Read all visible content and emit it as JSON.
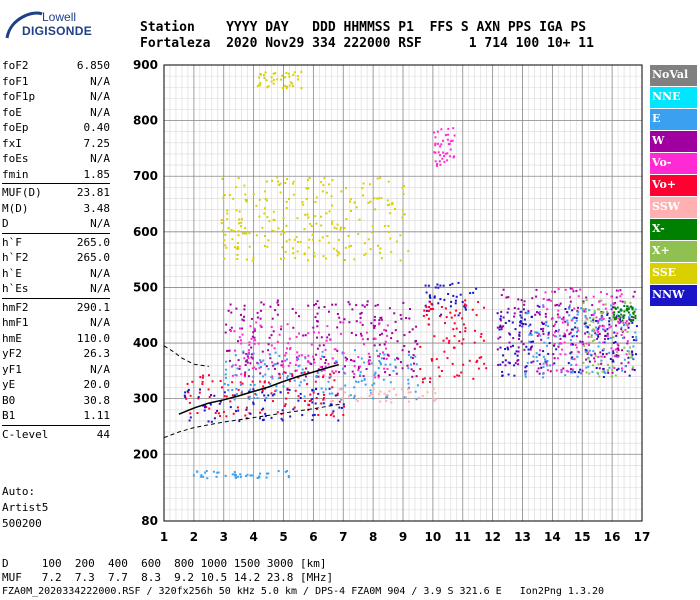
{
  "logo": {
    "line1": "Lowell",
    "line2": "DIGISONDE"
  },
  "header": {
    "row1": "Station    YYYY DAY   DDD HHMMSS P1  FFS S AXN PPS IGA PS",
    "row2": "Fortaleza  2020 Nov29 334 222000 RSF      1 714 100 10+ 11"
  },
  "params": [
    {
      "label": "foF2",
      "value": "6.850"
    },
    {
      "label": "foF1",
      "value": "N/A"
    },
    {
      "label": "foF1p",
      "value": "N/A"
    },
    {
      "label": "foE",
      "value": "N/A"
    },
    {
      "label": "foEp",
      "value": "0.40"
    },
    {
      "label": "fxI",
      "value": "7.25"
    },
    {
      "label": "foEs",
      "value": "N/A"
    },
    {
      "label": "fmin",
      "value": "1.85"
    },
    {
      "label": "MUF(D)",
      "value": "23.81"
    },
    {
      "label": "M(D)",
      "value": "3.48"
    },
    {
      "label": "D",
      "value": "N/A"
    },
    {
      "label": "h`F",
      "value": "265.0"
    },
    {
      "label": "h`F2",
      "value": "265.0"
    },
    {
      "label": "h`E",
      "value": "N/A"
    },
    {
      "label": "h`Es",
      "value": "N/A"
    },
    {
      "label": "hmF2",
      "value": "290.1"
    },
    {
      "label": "hmF1",
      "value": "N/A"
    },
    {
      "label": "hmE",
      "value": "110.0"
    },
    {
      "label": "yF2",
      "value": "26.3"
    },
    {
      "label": "yF1",
      "value": "N/A"
    },
    {
      "label": "yE",
      "value": "20.0"
    },
    {
      "label": "B0",
      "value": "30.8"
    },
    {
      "label": "B1",
      "value": "1.11"
    },
    {
      "label": "C-level",
      "value": "44"
    }
  ],
  "auto": {
    "label": "Auto:",
    "name": "Artist5",
    "version": "500200"
  },
  "footer": {
    "d_row": "D     100  200  400  600  800 1000 1500 3000 [km]",
    "muf_row": "MUF   7.2  7.3  7.7  8.3  9.2 10.5 14.2 23.8 [MHz]",
    "file_row": "FZA0M_2020334222000.RSF / 320fx256h 50 kHz 5.0 km / DPS-4 FZA0M 904 / 3.9 S 321.6 E   Ion2Png 1.3.20"
  },
  "legend": [
    {
      "label": "NoVal",
      "color": "#808080"
    },
    {
      "label": "NNE",
      "color": "#00e6ff"
    },
    {
      "label": "E",
      "color": "#3ca0f0"
    },
    {
      "label": "W",
      "color": "#a000a0"
    },
    {
      "label": "Vo-",
      "color": "#ff2ad4"
    },
    {
      "label": "Vo+",
      "color": "#ff0030"
    },
    {
      "label": "SSW",
      "color": "#ffb0b0"
    },
    {
      "label": "X-",
      "color": "#008000"
    },
    {
      "label": "X+",
      "color": "#90c050"
    },
    {
      "label": "SSE",
      "color": "#d8d000"
    },
    {
      "label": "NNW",
      "color": "#1a14c8"
    }
  ],
  "chart_data": {
    "type": "scatter",
    "xlim": [
      1,
      17
    ],
    "ylim": [
      80,
      900
    ],
    "xticks": [
      1,
      2,
      3,
      4,
      5,
      6,
      7,
      8,
      9,
      10,
      11,
      12,
      13,
      14,
      15,
      16,
      17
    ],
    "yticks": [
      80,
      200,
      300,
      400,
      500,
      600,
      700,
      800,
      900
    ],
    "xminor_step": 0.2,
    "grid": true,
    "profile_curve": [
      [
        1.5,
        272
      ],
      [
        2.0,
        283
      ],
      [
        2.5,
        292
      ],
      [
        3.0,
        298
      ],
      [
        3.5,
        305
      ],
      [
        4.0,
        313
      ],
      [
        4.5,
        321
      ],
      [
        5.0,
        331
      ],
      [
        5.5,
        340
      ],
      [
        6.0,
        348
      ],
      [
        6.5,
        356
      ],
      [
        6.85,
        361
      ]
    ],
    "dashed_upper": [
      [
        1.0,
        395
      ],
      [
        1.3,
        385
      ],
      [
        1.6,
        373
      ],
      [
        2.0,
        362
      ],
      [
        2.5,
        358
      ]
    ],
    "dashed_lower": [
      [
        1.0,
        230
      ],
      [
        1.5,
        240
      ],
      [
        2.0,
        248
      ],
      [
        3.0,
        258
      ],
      [
        4.0,
        266
      ],
      [
        5.0,
        274
      ],
      [
        6.0,
        282
      ],
      [
        6.9,
        290
      ]
    ],
    "clusters": [
      {
        "color": "#3ca0f0",
        "x": [
          1.8,
          5.3
        ],
        "y": [
          158,
          172
        ]
      },
      {
        "color": "#d8d000",
        "x": [
          2.9,
          9.2
        ],
        "y": [
          550,
          700
        ]
      },
      {
        "color": "#d8d000",
        "x": [
          4.0,
          5.6
        ],
        "y": [
          860,
          890
        ]
      },
      {
        "color": "#a000a0",
        "x": [
          3.0,
          9.5
        ],
        "y": [
          340,
          480
        ]
      },
      {
        "color": "#ff2ad4",
        "x": [
          3.2,
          8.5
        ],
        "y": [
          340,
          440
        ]
      },
      {
        "color": "#ff0030",
        "x": [
          1.6,
          7.0
        ],
        "y": [
          270,
          350
        ]
      },
      {
        "color": "#3ca0f0",
        "x": [
          3.0,
          9.5
        ],
        "y": [
          300,
          390
        ]
      },
      {
        "color": "#1a14c8",
        "x": [
          1.6,
          7.0
        ],
        "y": [
          260,
          320
        ]
      },
      {
        "color": "#1a14c8",
        "x": [
          9.6,
          11.5
        ],
        "y": [
          450,
          510
        ]
      },
      {
        "color": "#ffb0b0",
        "x": [
          6.5,
          10.2
        ],
        "y": [
          295,
          320
        ]
      },
      {
        "color": "#ff0030",
        "x": [
          9.5,
          11.8
        ],
        "y": [
          330,
          480
        ]
      },
      {
        "color": "#ff2ad4",
        "x": [
          10.0,
          10.7
        ],
        "y": [
          720,
          790
        ]
      },
      {
        "color": "#a000a0",
        "x": [
          12.1,
          16.8
        ],
        "y": [
          340,
          500
        ]
      },
      {
        "color": "#1a14c8",
        "x": [
          12.1,
          16.8
        ],
        "y": [
          340,
          470
        ]
      },
      {
        "color": "#3ca0f0",
        "x": [
          13.0,
          16.8
        ],
        "y": [
          340,
          470
        ]
      },
      {
        "color": "#ff2ad4",
        "x": [
          13.5,
          16.5
        ],
        "y": [
          350,
          500
        ]
      },
      {
        "color": "#90c050",
        "x": [
          15.0,
          16.8
        ],
        "y": [
          340,
          480
        ]
      },
      {
        "color": "#008000",
        "x": [
          16.0,
          16.8
        ],
        "y": [
          440,
          470
        ]
      }
    ]
  }
}
